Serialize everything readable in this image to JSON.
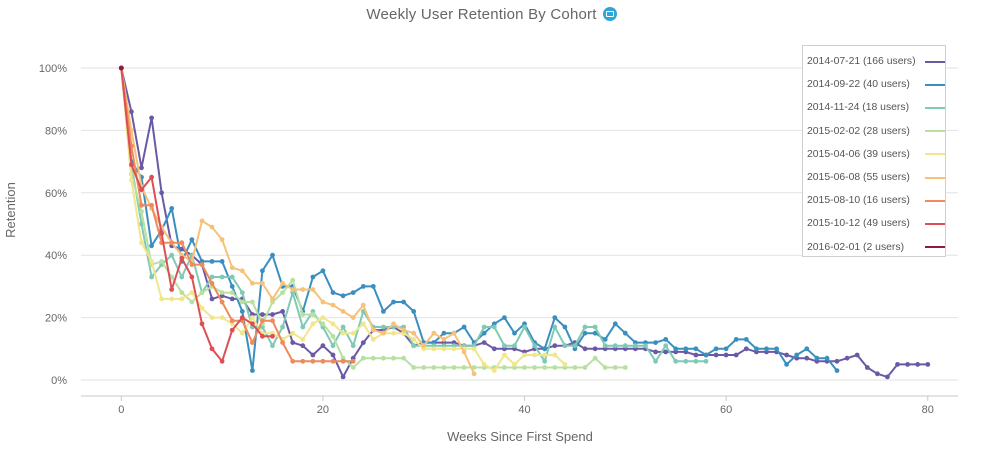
{
  "chart_data": {
    "type": "line",
    "title": "Weekly User Retention By Cohort",
    "xlabel": "Weeks Since First Spend",
    "ylabel": "Retention",
    "xlim": [
      -4,
      83
    ],
    "ylim": [
      0,
      100
    ],
    "x_ticks": [
      0,
      20,
      40,
      60,
      80
    ],
    "y_ticks": [
      0,
      20,
      40,
      60,
      80,
      100
    ],
    "y_tick_labels": [
      "0%",
      "20%",
      "40%",
      "60%",
      "80%",
      "100%"
    ],
    "grid": "horizontal",
    "legend_position": "top-right",
    "series": [
      {
        "name": "2014-07-21 (166 users)",
        "color": "#6a5aa5",
        "markers": true,
        "values": [
          100,
          86,
          68,
          84,
          60,
          43,
          42,
          40,
          37,
          26,
          27,
          26,
          26,
          21,
          21,
          21,
          22,
          12,
          11,
          8,
          11,
          8,
          1,
          7,
          12,
          16,
          16,
          17,
          15,
          11,
          12,
          12,
          12,
          12,
          11,
          11,
          12,
          10,
          10,
          10,
          9,
          10,
          10,
          11,
          11,
          12,
          10,
          10,
          10,
          10,
          10,
          10,
          10,
          9,
          9,
          9,
          9,
          8,
          8,
          8,
          8,
          8,
          10,
          9,
          9,
          9,
          8,
          7,
          7,
          6,
          6,
          6,
          7,
          8,
          4,
          2,
          1,
          5,
          5,
          5,
          5
        ]
      },
      {
        "name": "2014-09-22 (40 users)",
        "color": "#3b8fc0",
        "markers": true,
        "values": [
          100,
          70,
          65,
          43,
          48,
          55,
          38,
          45,
          38,
          38,
          38,
          30,
          22,
          3,
          35,
          40,
          30,
          30,
          22,
          33,
          35,
          28,
          27,
          28,
          30,
          30,
          22,
          25,
          25,
          22,
          12,
          12,
          15,
          15,
          17,
          12,
          15,
          18,
          20,
          15,
          18,
          12,
          10,
          20,
          17,
          10,
          15,
          15,
          13,
          18,
          15,
          12,
          12,
          12,
          13,
          10,
          10,
          10,
          8,
          10,
          10,
          13,
          13,
          10,
          10,
          10,
          5,
          8,
          10,
          7,
          7,
          3
        ]
      },
      {
        "name": "2014-11-24 (18 users)",
        "color": "#7fc9b5",
        "markers": true,
        "values": [
          100,
          69,
          50,
          33,
          37,
          40,
          33,
          40,
          28,
          33,
          33,
          33,
          28,
          17,
          17,
          11,
          17,
          28,
          17,
          22,
          17,
          11,
          17,
          11,
          22,
          17,
          17,
          17,
          17,
          11,
          11,
          11,
          11,
          11,
          11,
          11,
          17,
          17,
          11,
          11,
          17,
          11,
          6,
          17,
          11,
          11,
          17,
          17,
          11,
          11,
          11,
          11,
          11,
          6,
          11,
          6,
          6,
          6,
          6
        ]
      },
      {
        "name": "2015-02-02 (28 users)",
        "color": "#b8e0a0",
        "markers": true,
        "values": [
          100,
          66,
          54,
          37,
          38,
          33,
          28,
          25,
          28,
          30,
          28,
          28,
          25,
          25,
          18,
          25,
          28,
          32,
          21,
          21,
          18,
          14,
          7,
          4,
          7,
          7,
          7,
          7,
          7,
          4,
          4,
          4,
          4,
          4,
          4,
          4,
          4,
          4,
          4,
          4,
          4,
          4,
          4,
          4,
          4,
          4,
          4,
          7,
          4,
          4,
          4
        ]
      },
      {
        "name": "2015-04-06 (39 users)",
        "color": "#f0e68c",
        "markers": true,
        "values": [
          100,
          64,
          44,
          38,
          26,
          26,
          26,
          28,
          23,
          20,
          20,
          18,
          15,
          20,
          15,
          15,
          13,
          15,
          13,
          18,
          20,
          18,
          15,
          15,
          18,
          13,
          15,
          15,
          15,
          13,
          10,
          10,
          10,
          10,
          10,
          10,
          5,
          3,
          8,
          5,
          8,
          8,
          8,
          8,
          5
        ]
      },
      {
        "name": "2015-06-08 (55 users)",
        "color": "#f6c27a",
        "markers": true,
        "values": [
          100,
          80,
          62,
          55,
          49,
          44,
          40,
          38,
          51,
          49,
          45,
          36,
          35,
          31,
          31,
          26,
          31,
          29,
          29,
          29,
          25,
          24,
          22,
          20,
          24,
          16,
          15,
          18,
          16,
          15,
          11,
          15,
          13,
          15,
          9,
          2
        ]
      },
      {
        "name": "2015-08-10 (16 users)",
        "color": "#ee8a5c",
        "markers": true,
        "values": [
          100,
          75,
          56,
          56,
          44,
          44,
          44,
          37,
          37,
          31,
          25,
          19,
          19,
          12,
          19,
          19,
          12,
          6,
          6,
          6,
          6,
          6,
          6,
          6
        ]
      },
      {
        "name": "2015-10-12 (49 users)",
        "color": "#dd4f55",
        "markers": true,
        "values": [
          100,
          69,
          61,
          65,
          47,
          29,
          39,
          33,
          18,
          10,
          6,
          16,
          20,
          18,
          14,
          14
        ]
      },
      {
        "name": "2016-02-01 (2 users)",
        "color": "#8b1a47",
        "markers": true,
        "values": [
          100
        ]
      }
    ]
  }
}
